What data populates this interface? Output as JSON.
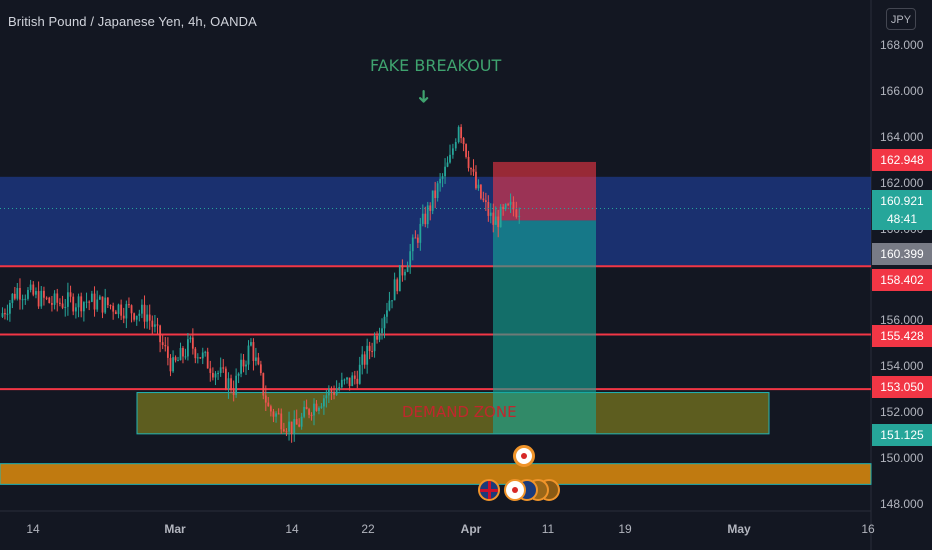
{
  "header": {
    "title": "British Pound / Japanese Yen, 4h, OANDA",
    "currency": "JPY"
  },
  "y_axis": {
    "ticks": [
      "168.000",
      "166.000",
      "164.000",
      "162.000",
      "160.000",
      "158.000",
      "156.000",
      "154.000",
      "152.000",
      "150.000",
      "148.000"
    ]
  },
  "x_axis": {
    "ticks": [
      "14",
      "Mar",
      "14",
      "22",
      "Apr",
      "11",
      "19",
      "May",
      "16"
    ],
    "bold_ticks": [
      "Mar",
      "Apr",
      "May"
    ]
  },
  "price_labels": {
    "stop": "162.948",
    "current_price": "160.921",
    "countdown": "48:41",
    "entry": "160.399",
    "level_1": "158.402",
    "level_2": "155.428",
    "level_3": "153.050",
    "target": "151.125"
  },
  "annotations": {
    "fake_breakout": "FAKE BREAKOUT",
    "arrow": "➜",
    "demand_zone": "DEMAND ZONE"
  },
  "colors": {
    "background": "#131722",
    "bull": "#26a69a",
    "bear": "#ef5350",
    "resistance_line": "#f23645",
    "blue_zone": "#1e3a8a",
    "demand_zone": "#6b6a1f",
    "orange_band": "#c07a10",
    "annotation_green": "#3fa36f",
    "annotation_red": "#c1272d"
  },
  "chart_data": {
    "type": "candlestick",
    "title": "British Pound / Japanese Yen, 4h, OANDA",
    "y_unit": "JPY",
    "ylim": [
      147.6,
      169.0
    ],
    "x_range": [
      "2024-02-06",
      "2024-05-20"
    ],
    "current_price": 160.921,
    "horizontal_levels": [
      158.402,
      155.428,
      153.05
    ],
    "zones": [
      {
        "name": "blue supply zone",
        "low": 158.4,
        "high": 162.3
      },
      {
        "name": "DEMAND ZONE",
        "low": 151.1,
        "high": 152.9
      },
      {
        "name": "orange band",
        "low": 148.9,
        "high": 149.8
      }
    ],
    "short_position": {
      "entry": 160.399,
      "stop": 162.948,
      "target": 151.125
    },
    "price_path": [
      {
        "date": "2024-02-06",
        "close": 156.2
      },
      {
        "date": "2024-02-08",
        "close": 157.4
      },
      {
        "date": "2024-02-12",
        "close": 156.8
      },
      {
        "date": "2024-02-16",
        "close": 156.9
      },
      {
        "date": "2024-02-20",
        "close": 156.6
      },
      {
        "date": "2024-02-23",
        "close": 156.3
      },
      {
        "date": "2024-02-26",
        "close": 154.0
      },
      {
        "date": "2024-02-28",
        "close": 155.0
      },
      {
        "date": "2024-03-01",
        "close": 154.2
      },
      {
        "date": "2024-03-04",
        "close": 153.1
      },
      {
        "date": "2024-03-06",
        "close": 155.0
      },
      {
        "date": "2024-03-08",
        "close": 152.2
      },
      {
        "date": "2024-03-11",
        "close": 151.3
      },
      {
        "date": "2024-03-13",
        "close": 152.3
      },
      {
        "date": "2024-03-15",
        "close": 152.9
      },
      {
        "date": "2024-03-18",
        "close": 153.5
      },
      {
        "date": "2024-03-20",
        "close": 155.0
      },
      {
        "date": "2024-03-22",
        "close": 157.0
      },
      {
        "date": "2024-03-25",
        "close": 159.5
      },
      {
        "date": "2024-03-27",
        "close": 161.3
      },
      {
        "date": "2024-03-29",
        "close": 163.0
      },
      {
        "date": "2024-03-30",
        "close": 164.7
      },
      {
        "date": "2024-04-01",
        "close": 161.8
      },
      {
        "date": "2024-04-03",
        "close": 160.3
      },
      {
        "date": "2024-04-05",
        "close": 160.9
      },
      {
        "date": "2024-04-06",
        "close": 160.921
      }
    ]
  }
}
